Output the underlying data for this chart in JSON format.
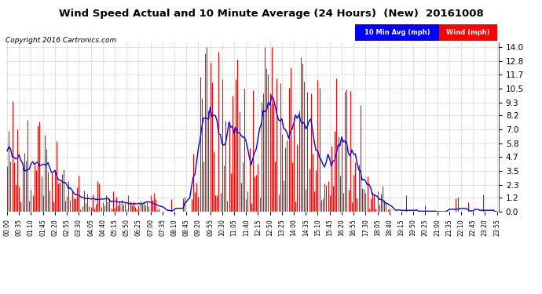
{
  "title": "Wind Speed Actual and 10 Minute Average (24 Hours)  (New)  20161008",
  "copyright": "Copyright 2016 Cartronics.com",
  "yticks": [
    0.0,
    1.2,
    2.3,
    3.5,
    4.7,
    5.8,
    7.0,
    8.2,
    9.3,
    10.5,
    11.7,
    12.8,
    14.0
  ],
  "ylim": [
    0.0,
    14.4
  ],
  "bg_color": "#ffffff",
  "grid_color": "#bbbbbb",
  "wind_color": "red",
  "avg_color": "blue",
  "num_points": 288,
  "tick_interval_min": 35,
  "legend_blue_label": "10 Min Avg (mph)",
  "legend_red_label": "Wind (mph)"
}
